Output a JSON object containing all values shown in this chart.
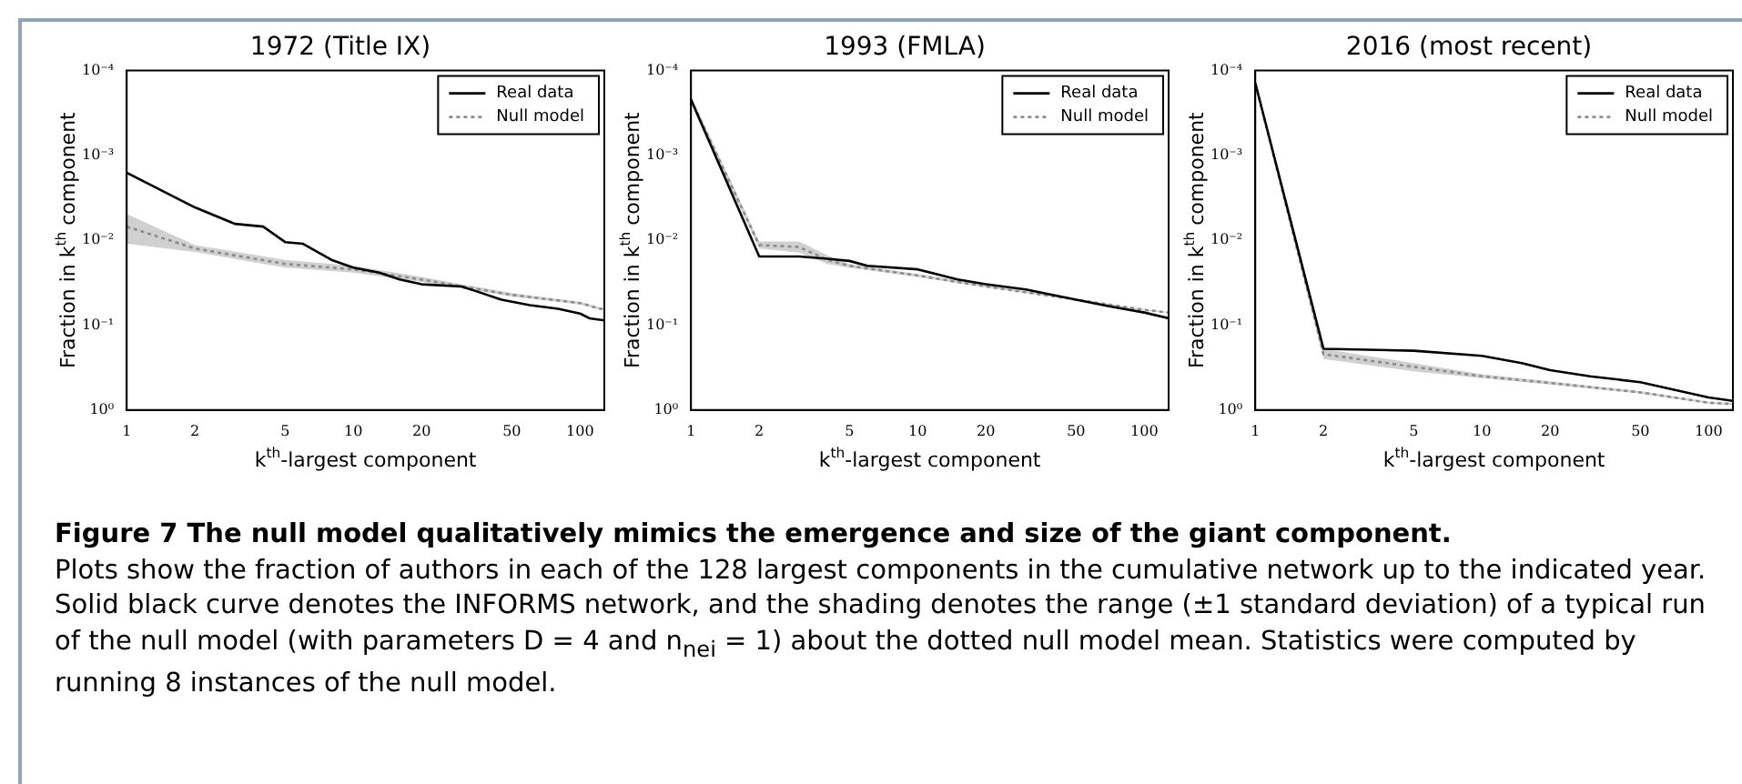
{
  "chart_data": [
    {
      "type": "line",
      "title": "1972 (Title IX)",
      "xlabel": "k$^{th}$-largest component",
      "ylabel": "Fraction in k$^{th}$ component",
      "log": "xy",
      "xlim": [
        1,
        128
      ],
      "xticks": [
        1,
        2,
        5,
        10,
        20,
        50,
        100
      ],
      "ylim": [
        1,
        0.0001
      ],
      "yticks": [
        {
          "value": 0.0001,
          "label": "10⁻⁴"
        },
        {
          "value": 0.001,
          "label": "10⁻³"
        },
        {
          "value": 0.01,
          "label": "10⁻²"
        },
        {
          "value": 0.1,
          "label": "10⁻¹"
        },
        {
          "value": 1,
          "label": "10⁰"
        }
      ],
      "grid": false,
      "legend": "top right",
      "marker": "none",
      "series": [
        {
          "name": "Real data",
          "color": "#000000",
          "line_style": "solid",
          "x": [
            1,
            2,
            3,
            4,
            5,
            6,
            8,
            10,
            13,
            16,
            20,
            30,
            35,
            45,
            60,
            80,
            100,
            110,
            128
          ],
          "values": [
            0.0016,
            0.0041,
            0.0064,
            0.0069,
            0.0105,
            0.011,
            0.017,
            0.021,
            0.024,
            0.029,
            0.033,
            0.035,
            0.04,
            0.05,
            0.058,
            0.064,
            0.073,
            0.083,
            0.088
          ]
        },
        {
          "name": "Null model",
          "color": "#8c8c8c",
          "line_style": "dotted",
          "x": [
            1,
            2,
            5,
            10,
            20,
            50,
            100,
            128
          ],
          "values": [
            0.0069,
            0.0125,
            0.019,
            0.022,
            0.029,
            0.044,
            0.055,
            0.066
          ],
          "lower": [
            0.0049,
            0.0114,
            0.017,
            0.02,
            0.027,
            0.042,
            0.053,
            0.064
          ],
          "upper": [
            0.011,
            0.0137,
            0.021,
            0.024,
            0.031,
            0.046,
            0.057,
            0.068
          ]
        }
      ]
    },
    {
      "type": "line",
      "title": "1993 (FMLA)",
      "xlabel": "k$^{th}$-largest component",
      "ylabel": "Fraction in k$^{th}$ component",
      "log": "xy",
      "xlim": [
        1,
        128
      ],
      "xticks": [
        1,
        2,
        5,
        10,
        20,
        50,
        100
      ],
      "ylim": [
        1,
        0.0001
      ],
      "yticks": [
        {
          "value": 0.0001,
          "label": "10⁻⁴"
        },
        {
          "value": 0.001,
          "label": "10⁻³"
        },
        {
          "value": 0.01,
          "label": "10⁻²"
        },
        {
          "value": 0.1,
          "label": "10⁻¹"
        },
        {
          "value": 1,
          "label": "10⁰"
        }
      ],
      "grid": false,
      "legend": "top right",
      "marker": "none",
      "series": [
        {
          "name": "Real data",
          "color": "#000000",
          "line_style": "solid",
          "x": [
            1,
            2,
            3,
            4,
            5,
            6,
            10,
            15,
            20,
            30,
            50,
            70,
            100,
            128
          ],
          "values": [
            0.00022,
            0.0155,
            0.0155,
            0.0165,
            0.0175,
            0.02,
            0.022,
            0.029,
            0.033,
            0.038,
            0.05,
            0.06,
            0.071,
            0.083
          ]
        },
        {
          "name": "Null model",
          "color": "#8c8c8c",
          "line_style": "dotted",
          "x": [
            1,
            2,
            3,
            4,
            5,
            10,
            20,
            50,
            100,
            128
          ],
          "values": [
            0.00022,
            0.0114,
            0.012,
            0.017,
            0.02,
            0.026,
            0.035,
            0.05,
            0.066,
            0.071
          ],
          "lower": [
            0.0002,
            0.0103,
            0.0103,
            0.015,
            0.019,
            0.025,
            0.034,
            0.049,
            0.065,
            0.07
          ],
          "upper": [
            0.00024,
            0.0125,
            0.014,
            0.019,
            0.021,
            0.027,
            0.036,
            0.051,
            0.067,
            0.072
          ]
        }
      ]
    },
    {
      "type": "line",
      "title": "2016 (most recent)",
      "xlabel": "k$^{th}$-largest component",
      "ylabel": "Fraction in k$^{th}$ component",
      "log": "xy",
      "xlim": [
        1,
        128
      ],
      "xticks": [
        1,
        2,
        5,
        10,
        20,
        50,
        100
      ],
      "ylim": [
        1,
        0.0001
      ],
      "yticks": [
        {
          "value": 0.0001,
          "label": "10⁻⁴"
        },
        {
          "value": 0.001,
          "label": "10⁻³"
        },
        {
          "value": 0.01,
          "label": "10⁻²"
        },
        {
          "value": 0.1,
          "label": "10⁻¹"
        },
        {
          "value": 1,
          "label": "10⁰"
        }
      ],
      "grid": false,
      "legend": "top right",
      "marker": "none",
      "series": [
        {
          "name": "Real data",
          "color": "#000000",
          "line_style": "solid",
          "x": [
            1,
            2,
            5,
            10,
            15,
            20,
            30,
            50,
            100,
            128
          ],
          "values": [
            0.00014,
            0.19,
            0.2,
            0.23,
            0.28,
            0.34,
            0.4,
            0.47,
            0.71,
            0.78
          ]
        },
        {
          "name": "Null model",
          "color": "#8c8c8c",
          "line_style": "dotted",
          "x": [
            1,
            2,
            5,
            10,
            20,
            50,
            100,
            128
          ],
          "values": [
            0.00014,
            0.22,
            0.31,
            0.4,
            0.48,
            0.62,
            0.82,
            0.85
          ],
          "lower": [
            0.00013,
            0.19,
            0.28,
            0.38,
            0.46,
            0.6,
            0.8,
            0.83
          ],
          "upper": [
            0.00015,
            0.25,
            0.35,
            0.42,
            0.5,
            0.64,
            0.84,
            0.87
          ]
        }
      ]
    },
    {
      "type": "other",
      "title": "Figure 7   The null model qualitatively mimics the emergence and size of the giant component.",
      "annotations": [
        "Plots show the fraction of authors in each of the 128 largest components in the cumulative network up to the indicated year. Solid black curve denotes the INFORMS network, and the shading denotes the range (±1 standard deviation) of a typical run of the null model (with parameters D = 4 and n$_{nei}$ = 1) about the dotted null model mean. Statistics were computed by running 8 instances of the null model."
      ]
    }
  ]
}
